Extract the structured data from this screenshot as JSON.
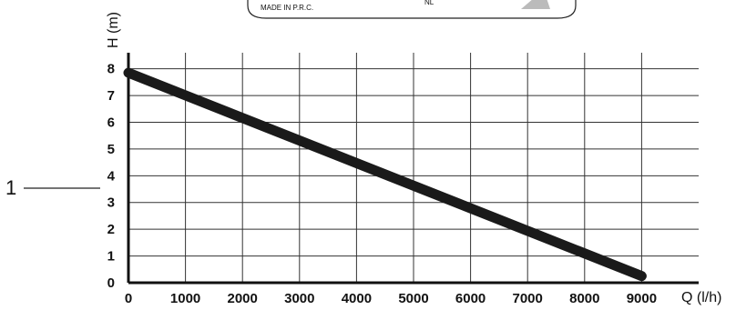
{
  "label_box": {
    "made_in": "MADE IN P.R.C.",
    "code": "NL"
  },
  "callout": {
    "number": "1"
  },
  "chart_data": {
    "type": "line",
    "xlabel": "Q (l/h)",
    "ylabel": "H (m)",
    "xlim": [
      0,
      10000
    ],
    "ylim": [
      0,
      8.6
    ],
    "x_ticks": [
      0,
      1000,
      2000,
      3000,
      4000,
      5000,
      6000,
      7000,
      8000,
      9000
    ],
    "y_ticks": [
      0,
      1,
      2,
      3,
      4,
      5,
      6,
      7,
      8
    ],
    "grid": true,
    "series": [
      {
        "x": [
          0,
          9000
        ],
        "y": [
          7.85,
          0.25
        ]
      }
    ],
    "line_color": "#1a1a1a"
  }
}
